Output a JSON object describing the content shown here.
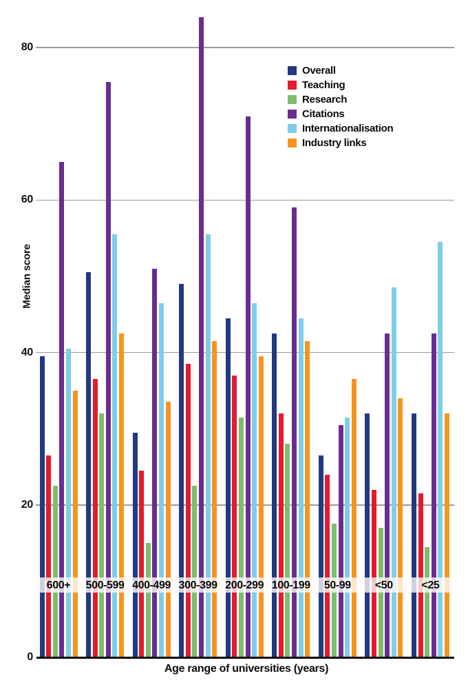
{
  "chart_data": {
    "type": "bar",
    "title": "",
    "xlabel": "Age range of universities (years)",
    "ylabel": "Median score",
    "ylim": [
      0,
      86
    ],
    "yticks": [
      0,
      20,
      40,
      60,
      80
    ],
    "grid": true,
    "legend_position": "inside-top-center",
    "categories": [
      "600+",
      "500-599",
      "400-499",
      "300-399",
      "200-299",
      "100-199",
      "50-99",
      "<50",
      "<25"
    ],
    "series": [
      {
        "name": "Overall",
        "color": "#21397f",
        "values": [
          39.5,
          50.5,
          29.5,
          49,
          44.5,
          42.5,
          26.5,
          32,
          32
        ]
      },
      {
        "name": "Teaching",
        "color": "#e51a2d",
        "values": [
          26.5,
          36.5,
          24.5,
          38.5,
          37,
          32,
          24,
          22,
          21.5
        ]
      },
      {
        "name": "Research",
        "color": "#7cbe6e",
        "values": [
          22.5,
          32,
          15,
          22.5,
          31.5,
          28,
          17.5,
          17,
          14.5
        ]
      },
      {
        "name": "Citations",
        "color": "#6a2c90",
        "values": [
          65,
          75.5,
          51,
          84,
          71,
          59,
          30.5,
          42.5,
          42.5
        ]
      },
      {
        "name": "Internationalisation",
        "color": "#7ecdea",
        "values": [
          40.5,
          55.5,
          46.5,
          55.5,
          46.5,
          44.5,
          31.5,
          48.5,
          54.5
        ]
      },
      {
        "name": "Industry links",
        "color": "#f7941e",
        "values": [
          35,
          42.5,
          33.5,
          41.5,
          39.5,
          41.5,
          36.5,
          34,
          32
        ]
      }
    ]
  }
}
